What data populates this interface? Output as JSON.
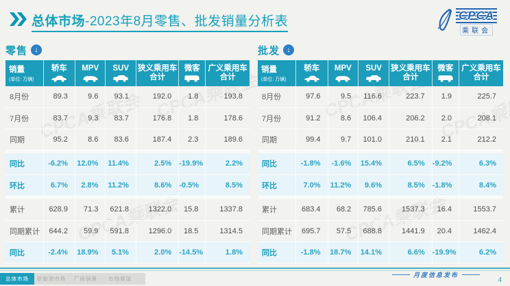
{
  "header": {
    "title_bold": "总体市场",
    "title_rest": "-2023年8月零售、批发销量分析表",
    "logo": {
      "cpca": "CPCA",
      "cn": "乘联会"
    }
  },
  "watermark": "CPCA乘联会",
  "columns": [
    {
      "label": "销量",
      "sub": "(单位: 万辆)",
      "icon": null
    },
    {
      "label": "轿车",
      "icon": "sedan-icon"
    },
    {
      "label": "MPV",
      "icon": "mpv-icon"
    },
    {
      "label": "SUV",
      "icon": "suv-icon"
    },
    {
      "label": "狭义乘用车\n合计",
      "icon": null
    },
    {
      "label": "微客",
      "icon": "minibus-icon"
    },
    {
      "label": "广义乘用车\n合计",
      "icon": null
    }
  ],
  "tables": [
    {
      "section_label": "零售",
      "rows": [
        {
          "kind": "normal",
          "label": "8月份",
          "values": [
            "89.3",
            "9.6",
            "93.1",
            "192.0",
            "1.8",
            "193.8"
          ]
        },
        {
          "kind": "normal",
          "label": "7月份",
          "values": [
            "83.7",
            "9.3",
            "83.7",
            "176.8",
            "1.8",
            "178.6"
          ]
        },
        {
          "kind": "normal",
          "label": "同期",
          "values": [
            "95.2",
            "8.6",
            "83.6",
            "187.4",
            "2.3",
            "189.6"
          ]
        },
        {
          "kind": "spacer"
        },
        {
          "kind": "pct",
          "label": "同比",
          "values": [
            "-6.2%",
            "12.0%",
            "11.4%",
            "2.5%",
            "-19.9%",
            "2.2%"
          ]
        },
        {
          "kind": "pct",
          "label": "环比",
          "values": [
            "6.7%",
            "2.8%",
            "11.2%",
            "8.6%",
            "-0.5%",
            "8.5%"
          ]
        },
        {
          "kind": "spacer"
        },
        {
          "kind": "normal",
          "label": "累计",
          "values": [
            "628.9",
            "71.3",
            "621.8",
            "1322.0",
            "15.8",
            "1337.8"
          ]
        },
        {
          "kind": "normal",
          "label": "同期累计",
          "values": [
            "644.2",
            "59.9",
            "591.8",
            "1296.0",
            "18.5",
            "1314.5"
          ]
        },
        {
          "kind": "pct",
          "label": "同比",
          "values": [
            "-2.4%",
            "18.9%",
            "5.1%",
            "2.0%",
            "-14.5%",
            "1.8%"
          ]
        }
      ]
    },
    {
      "section_label": "批发",
      "rows": [
        {
          "kind": "normal",
          "label": "8月份",
          "values": [
            "97.6",
            "9.5",
            "116.6",
            "223.7",
            "1.9",
            "225.7"
          ]
        },
        {
          "kind": "normal",
          "label": "7月份",
          "values": [
            "91.2",
            "8.6",
            "106.4",
            "206.2",
            "2.0",
            "208.1"
          ]
        },
        {
          "kind": "normal",
          "label": "同期",
          "values": [
            "99.4",
            "9.7",
            "101.0",
            "210.1",
            "2.1",
            "212.2"
          ]
        },
        {
          "kind": "spacer"
        },
        {
          "kind": "pct",
          "label": "同比",
          "values": [
            "-1.8%",
            "-1.6%",
            "15.4%",
            "6.5%",
            "-9.2%",
            "6.3%"
          ]
        },
        {
          "kind": "pct",
          "label": "环比",
          "values": [
            "7.0%",
            "11.2%",
            "9.6%",
            "8.5%",
            "-1.8%",
            "8.4%"
          ]
        },
        {
          "kind": "spacer"
        },
        {
          "kind": "normal",
          "label": "累计",
          "values": [
            "683.4",
            "68.2",
            "785.6",
            "1537.3",
            "16.4",
            "1553.7"
          ]
        },
        {
          "kind": "normal",
          "label": "同期累计",
          "values": [
            "695.7",
            "57.5",
            "688.8",
            "1441.9",
            "20.4",
            "1462.4"
          ]
        },
        {
          "kind": "pct",
          "label": "同比",
          "values": [
            "-1.8%",
            "18.7%",
            "14.1%",
            "6.6%",
            "-19.9%",
            "6.2%"
          ]
        }
      ]
    }
  ],
  "footer": {
    "tabs": [
      {
        "label": "总体市场",
        "active": true
      },
      {
        "label": "新能源市场",
        "active": false
      },
      {
        "label": "厂商销量",
        "active": false
      },
      {
        "label": "市场展望",
        "active": false
      }
    ],
    "release_text": "月度信息发布",
    "page_number": "4"
  },
  "colors": {
    "accent_teal": "#1B9DBB",
    "title_teal": "#14A2BC",
    "pct_bg": "#E7F4F9",
    "pct_text": "#2BA5C6",
    "logo_blue": "#2366B1",
    "arrow_circle_blue": "#2B80C5",
    "footer_blue": "#3B7EC0"
  }
}
